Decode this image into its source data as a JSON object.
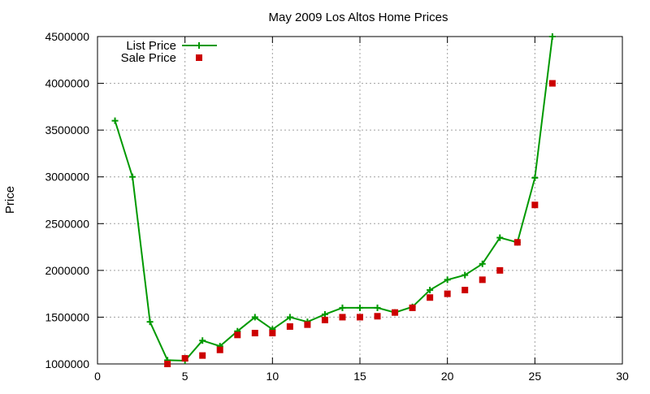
{
  "chart_data": {
    "type": "line",
    "title": "May 2009 Los Altos Home Prices",
    "xlabel": "",
    "ylabel": "Price",
    "xlim": [
      0,
      30
    ],
    "ylim": [
      1000000,
      4500000
    ],
    "xticks": [
      "0",
      "5",
      "10",
      "15",
      "20",
      "25",
      "30"
    ],
    "yticks": [
      "1000000",
      "1500000",
      "2000000",
      "2500000",
      "3000000",
      "3500000",
      "4000000",
      "4500000"
    ],
    "grid": true,
    "legend_position": "top-left",
    "series": [
      {
        "name": "List Price",
        "style": "line+cross",
        "color": "#009900",
        "points": [
          [
            1,
            3600000
          ],
          [
            2,
            3000000
          ],
          [
            3,
            1450000
          ],
          [
            4,
            1040000
          ],
          [
            5,
            1035000
          ],
          [
            6,
            1250000
          ],
          [
            7,
            1190000
          ],
          [
            8,
            1350000
          ],
          [
            9,
            1500000
          ],
          [
            10,
            1370000
          ],
          [
            11,
            1500000
          ],
          [
            12,
            1450000
          ],
          [
            13,
            1530000
          ],
          [
            14,
            1600000
          ],
          [
            15,
            1600000
          ],
          [
            16,
            1600000
          ],
          [
            17,
            1550000
          ],
          [
            18,
            1610000
          ],
          [
            19,
            1790000
          ],
          [
            20,
            1900000
          ],
          [
            21,
            1950000
          ],
          [
            22,
            2070000
          ],
          [
            23,
            2350000
          ],
          [
            24,
            2300000
          ],
          [
            25,
            2990000
          ],
          [
            26,
            4500000
          ]
        ]
      },
      {
        "name": "Sale Price",
        "style": "square",
        "color": "#cc0000",
        "points": [
          [
            4,
            1000000
          ],
          [
            5,
            1060000
          ],
          [
            6,
            1090000
          ],
          [
            7,
            1150000
          ],
          [
            8,
            1310000
          ],
          [
            9,
            1330000
          ],
          [
            10,
            1330000
          ],
          [
            11,
            1400000
          ],
          [
            12,
            1420000
          ],
          [
            13,
            1470000
          ],
          [
            14,
            1500000
          ],
          [
            15,
            1500000
          ],
          [
            16,
            1510000
          ],
          [
            17,
            1550000
          ],
          [
            18,
            1600000
          ],
          [
            19,
            1710000
          ],
          [
            20,
            1750000
          ],
          [
            21,
            1790000
          ],
          [
            22,
            1900000
          ],
          [
            23,
            2000000
          ],
          [
            24,
            2300000
          ],
          [
            25,
            2700000
          ],
          [
            26,
            4000000
          ]
        ]
      }
    ]
  }
}
